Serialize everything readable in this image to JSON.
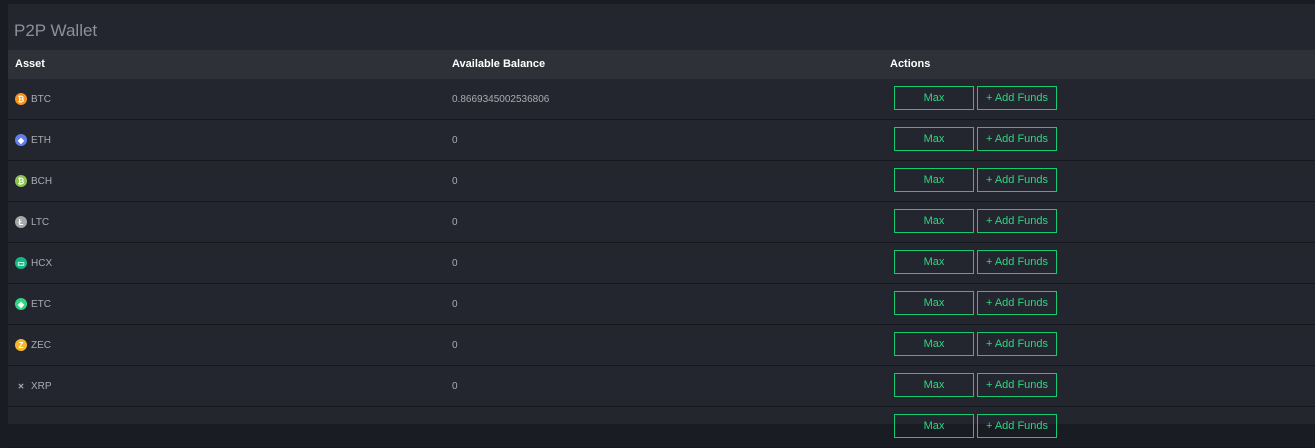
{
  "title": "P2P Wallet",
  "columns": {
    "asset": "Asset",
    "balance": "Available Balance",
    "actions": "Actions"
  },
  "buttons": {
    "max": "Max",
    "add_funds": "+ Add Funds"
  },
  "accent": "#17c96f",
  "rows": [
    {
      "symbol": "BTC",
      "balance": "0.8669345002536806",
      "color": "#f7931a",
      "glyph": "₿"
    },
    {
      "symbol": "ETH",
      "balance": "0",
      "color": "#627eea",
      "glyph": "◆"
    },
    {
      "symbol": "BCH",
      "balance": "0",
      "color": "#8dc351",
      "glyph": "₿"
    },
    {
      "symbol": "LTC",
      "balance": "0",
      "color": "#a6a9aa",
      "glyph": "Ł"
    },
    {
      "symbol": "HCX",
      "balance": "0",
      "color": "#12b886",
      "glyph": "▭"
    },
    {
      "symbol": "ETC",
      "balance": "0",
      "color": "#2ed684",
      "glyph": "◆"
    },
    {
      "symbol": "ZEC",
      "balance": "0",
      "color": "#f4b728",
      "glyph": "Z"
    },
    {
      "symbol": "XRP",
      "balance": "0",
      "color": "transparent",
      "glyph": "✕"
    }
  ]
}
